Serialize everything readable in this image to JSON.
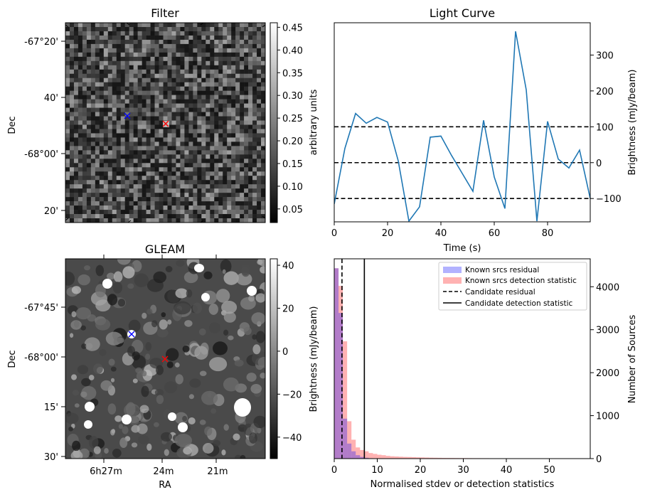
{
  "filter_panel": {
    "title": "Filter",
    "ylabel": "Dec",
    "yticks": [
      "-67°20'",
      "40'",
      "-68°00'",
      "20'"
    ],
    "cbar_label": "arbitrary units",
    "cbar_range": [
      0.02,
      0.46
    ],
    "cbar_ticks": [
      "0.05",
      "0.10",
      "0.15",
      "0.20",
      "0.25",
      "0.30",
      "0.35",
      "0.40",
      "0.45"
    ],
    "colormap": "gray",
    "markers": [
      {
        "symbol": "x",
        "color": "#0000ff"
      },
      {
        "symbol": "x",
        "color": "#ff0000"
      }
    ]
  },
  "gleam_panel": {
    "title": "GLEAM",
    "xlabel": "RA",
    "ylabel": "Dec",
    "xticks": [
      "6h27m",
      "24m",
      "21m"
    ],
    "yticks": [
      "-67°45'",
      "-68°00'",
      "15'",
      "30'"
    ],
    "cbar_label": "Brightness (mJy/beam)",
    "cbar_range": [
      -50,
      43
    ],
    "cbar_ticks": [
      "40",
      "20",
      "0",
      "−20",
      "−40"
    ],
    "colormap": "gray",
    "markers": [
      {
        "symbol": "x",
        "color": "#0000ff"
      },
      {
        "symbol": "x",
        "color": "#ff0000"
      }
    ]
  },
  "chart_data": [
    {
      "type": "line",
      "title": "Light Curve",
      "xlabel": "Time (s)",
      "ylabel": "Brightness (mJy/beam)",
      "xlim": [
        0,
        96
      ],
      "ylim": [
        -165,
        390
      ],
      "xticks": [
        "0",
        "20",
        "40",
        "60",
        "80"
      ],
      "yticks": [
        "−100",
        "0",
        "100",
        "200",
        "300"
      ],
      "y_axis_side": "right",
      "series": [
        {
          "color": "#1f77b4",
          "x": [
            0,
            4,
            8,
            12,
            16,
            20,
            24,
            28,
            32,
            36,
            40,
            44,
            48,
            52,
            56,
            60,
            64,
            68,
            72,
            76,
            80,
            84,
            88,
            92,
            96
          ],
          "y": [
            -115,
            40,
            137,
            110,
            126,
            113,
            5,
            -163,
            -123,
            71,
            74,
            20,
            -30,
            -80,
            118,
            -40,
            -128,
            366,
            203,
            -163,
            115,
            10,
            -15,
            35,
            -100
          ]
        }
      ],
      "hlines": [
        {
          "y": 100,
          "style": "dashed",
          "color": "#000000"
        },
        {
          "y": 0,
          "style": "dashed",
          "color": "#000000"
        },
        {
          "y": -100,
          "style": "dashed",
          "color": "#000000"
        }
      ]
    },
    {
      "type": "bar",
      "subtype": "histogram",
      "xlabel": "Normalised stdev or detection statistics",
      "ylabel": "Number of Sources",
      "xlim": [
        0,
        59.5
      ],
      "ylim": [
        0,
        4650
      ],
      "xticks": [
        "0",
        "10",
        "20",
        "30",
        "40",
        "50"
      ],
      "yticks": [
        "0",
        "1000",
        "2000",
        "3000",
        "4000"
      ],
      "y_axis_side": "right",
      "bin_width": 1.0,
      "legend_position": "top-right",
      "series": [
        {
          "name": "Known srcs residual",
          "color": "#0000ff",
          "opacity": 0.3,
          "bin_start": 0,
          "values": [
            4430,
            3390,
            930,
            350,
            170,
            80,
            40,
            20,
            10,
            5,
            3,
            2,
            1,
            1,
            1
          ]
        },
        {
          "name": "Known srcs detection statistic",
          "color": "#ff0000",
          "opacity": 0.3,
          "bin_start": 0,
          "values": [
            4430,
            4020,
            2730,
            870,
            440,
            260,
            200,
            170,
            130,
            110,
            90,
            80,
            65,
            55,
            50,
            45,
            40,
            38,
            35,
            30,
            28,
            25,
            22,
            20,
            18,
            16,
            15,
            14,
            13,
            12,
            12,
            11,
            10,
            10,
            9,
            9,
            8,
            8,
            7,
            7,
            6,
            6,
            6,
            5,
            5,
            5,
            4,
            4,
            4,
            3,
            3,
            3,
            3,
            3,
            2,
            2,
            2,
            2
          ]
        }
      ],
      "vlines": [
        {
          "name": "Candidate residual",
          "x": 1.8,
          "style": "dashed",
          "color": "#000000"
        },
        {
          "name": "Candidate detection statistic",
          "x": 7.0,
          "style": "solid",
          "color": "#000000"
        }
      ]
    }
  ]
}
